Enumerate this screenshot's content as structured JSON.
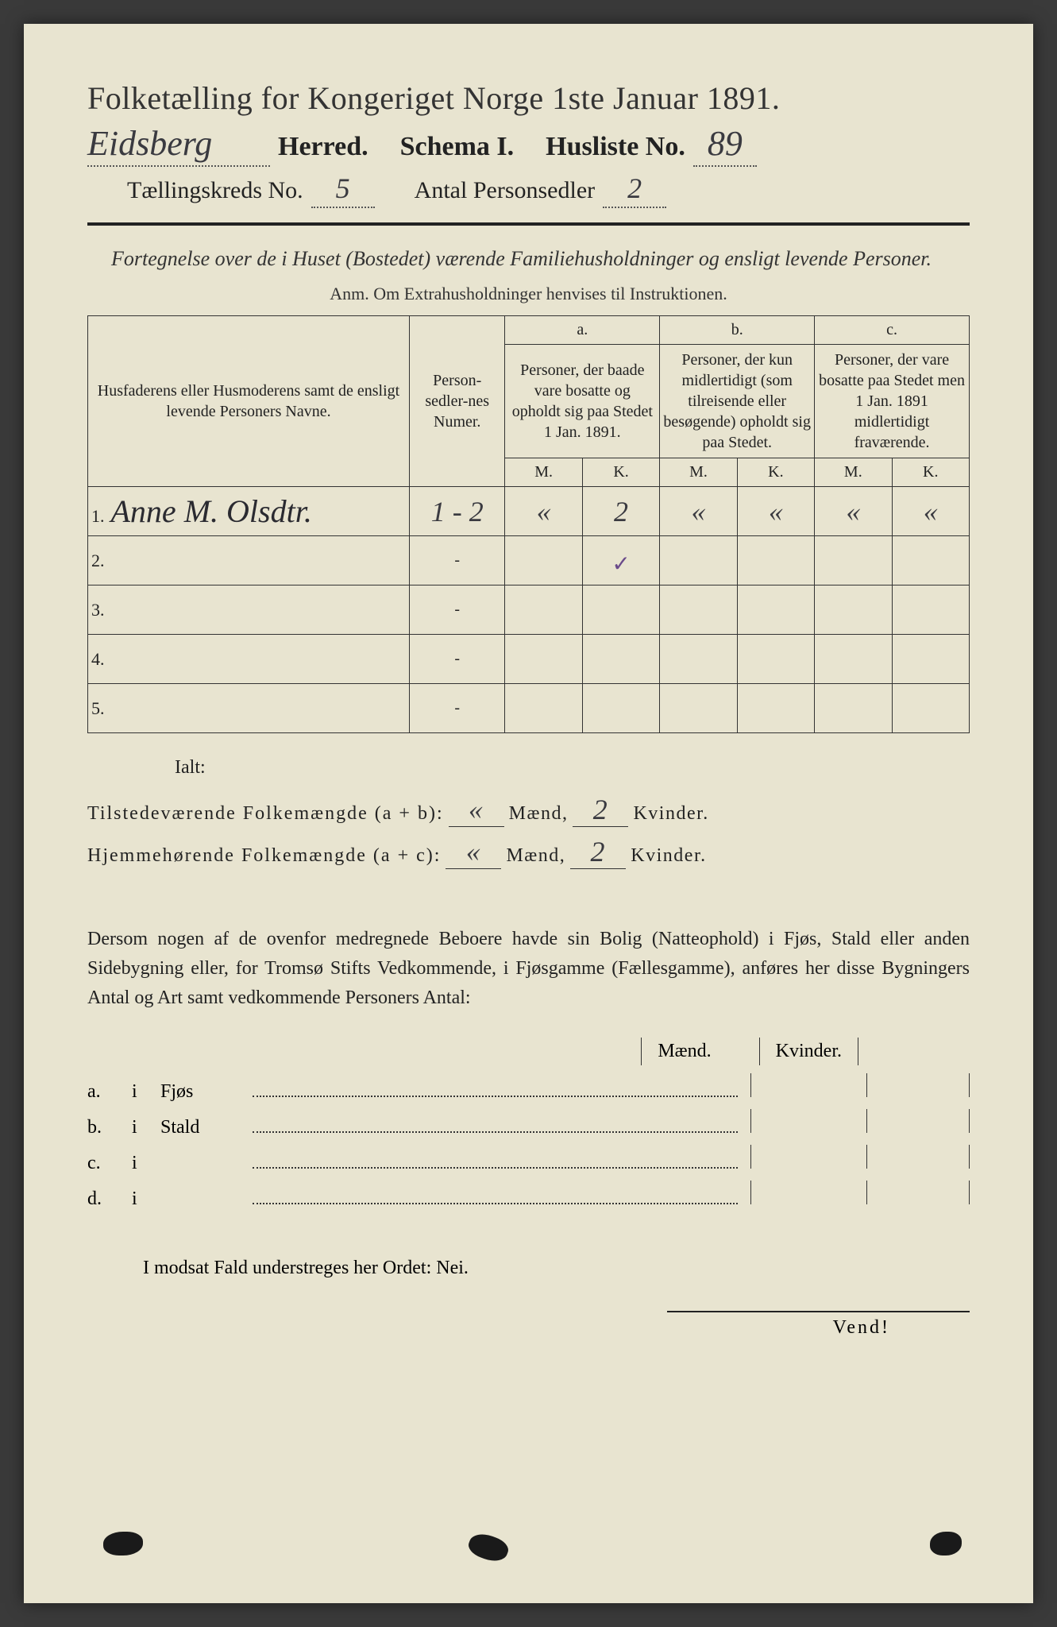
{
  "colors": {
    "paper": "#e8e4d0",
    "ink": "#222222",
    "handwriting": "#3a3a40",
    "tick": "#6a4a8a"
  },
  "header": {
    "title": "Folketælling for Kongeriget Norge 1ste Januar 1891.",
    "herred_value": "Eidsberg",
    "herred_label": "Herred.",
    "schema_label": "Schema I.",
    "husliste_label": "Husliste No.",
    "husliste_value": "89",
    "kreds_label": "Tællingskreds No.",
    "kreds_value": "5",
    "antal_label": "Antal Personsedler",
    "antal_value": "2"
  },
  "intro": "Fortegnelse over de i Huset (Bostedet) værende Familiehusholdninger og ensligt levende Personer.",
  "anm": "Anm.  Om Extrahusholdninger henvises til Instruktionen.",
  "table": {
    "col1_header": "Husfaderens eller Husmoderens samt de ensligt levende Personers Navne.",
    "col2_header": "Person-sedler-nes Numer.",
    "col_a_top": "a.",
    "col_a": "Personer, der baade vare bosatte og opholdt sig paa Stedet 1 Jan. 1891.",
    "col_b_top": "b.",
    "col_b": "Personer, der kun midlertidigt (som tilreisende eller besøgende) opholdt sig paa Stedet.",
    "col_c_top": "c.",
    "col_c": "Personer, der vare bosatte paa Stedet men 1 Jan. 1891 midlertidigt fraværende.",
    "m": "M.",
    "k": "K.",
    "rows": [
      {
        "n": "1.",
        "name": "Anne M. Olsdtr.",
        "num": "1 - 2",
        "am": "«",
        "ak": "2",
        "bm": "«",
        "bk": "«",
        "cm": "«",
        "ck": "«"
      },
      {
        "n": "2.",
        "name": "",
        "num": "-",
        "am": "",
        "ak": "",
        "bm": "",
        "bk": "",
        "cm": "",
        "ck": ""
      },
      {
        "n": "3.",
        "name": "",
        "num": "-",
        "am": "",
        "ak": "",
        "bm": "",
        "bk": "",
        "cm": "",
        "ck": ""
      },
      {
        "n": "4.",
        "name": "",
        "num": "-",
        "am": "",
        "ak": "",
        "bm": "",
        "bk": "",
        "cm": "",
        "ck": ""
      },
      {
        "n": "5.",
        "name": "",
        "num": "-",
        "am": "",
        "ak": "",
        "bm": "",
        "bk": "",
        "cm": "",
        "ck": ""
      }
    ],
    "tick_row": 1,
    "tick_col": "ak"
  },
  "ialt": "Ialt:",
  "totals": {
    "line1_label": "Tilstedeværende Folkemængde (a + b):",
    "line1_m": "«",
    "line1_k": "2",
    "line2_label": "Hjemmehørende Folkemængde (a + c):",
    "line2_m": "«",
    "line2_k": "2",
    "maend": "Mænd,",
    "kvinder": "Kvinder."
  },
  "para": "Dersom nogen af de ovenfor medregnede Beboere havde sin Bolig (Natteophold) i Fjøs, Stald eller anden Sidebygning eller, for Tromsø Stifts Vedkommende, i Fjøsgamme (Fællesgamme), anføres her disse Bygningers Antal og Art samt vedkommende Personers Antal:",
  "mk": {
    "maend": "Mænd.",
    "kvinder": "Kvinder."
  },
  "list": [
    {
      "lbl": "a.",
      "i": "i",
      "word": "Fjøs"
    },
    {
      "lbl": "b.",
      "i": "i",
      "word": "Stald"
    },
    {
      "lbl": "c.",
      "i": "i",
      "word": ""
    },
    {
      "lbl": "d.",
      "i": "i",
      "word": ""
    }
  ],
  "modsat": "I modsat Fald understreges her Ordet: Nei.",
  "vend": "Vend!"
}
